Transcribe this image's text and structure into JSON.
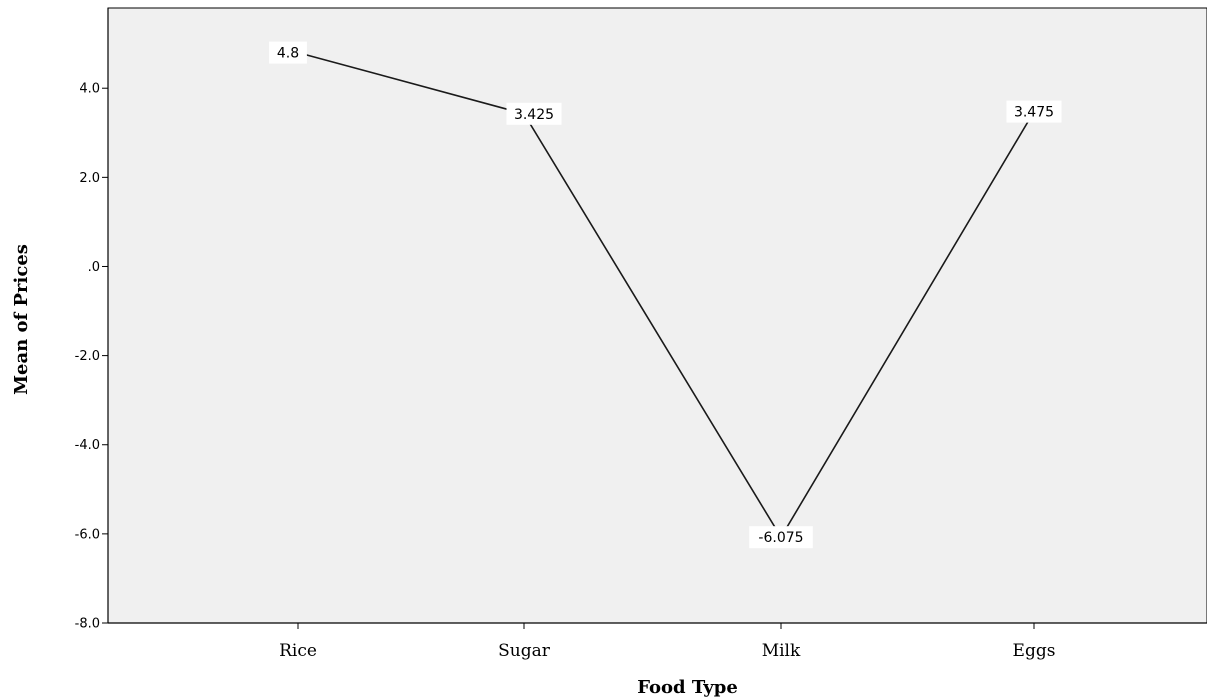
{
  "chart_data": {
    "type": "line",
    "categories": [
      "Rice",
      "Sugar",
      "Milk",
      "Eggs"
    ],
    "values": [
      4.8,
      3.425,
      -6.075,
      3.475
    ],
    "data_labels": [
      "4.8",
      "3.425",
      "-6.075",
      "3.475"
    ],
    "xlabel": "Food Type",
    "ylabel": "Mean of Prices",
    "ylim": [
      -8.0,
      5.8
    ],
    "yticks": [
      4.0,
      2.0,
      0.0,
      -2.0,
      -4.0,
      -6.0,
      -8.0
    ],
    "ytick_labels": [
      "4.0",
      "2.0",
      ".0",
      "-2.0",
      "-4.0",
      "-6.0",
      "-8.0"
    ],
    "grid": false,
    "legend": "none",
    "colors": {
      "plot_background": "#f0f0f0",
      "line": "#1a1a1a",
      "label_background": "#ffffff"
    }
  }
}
